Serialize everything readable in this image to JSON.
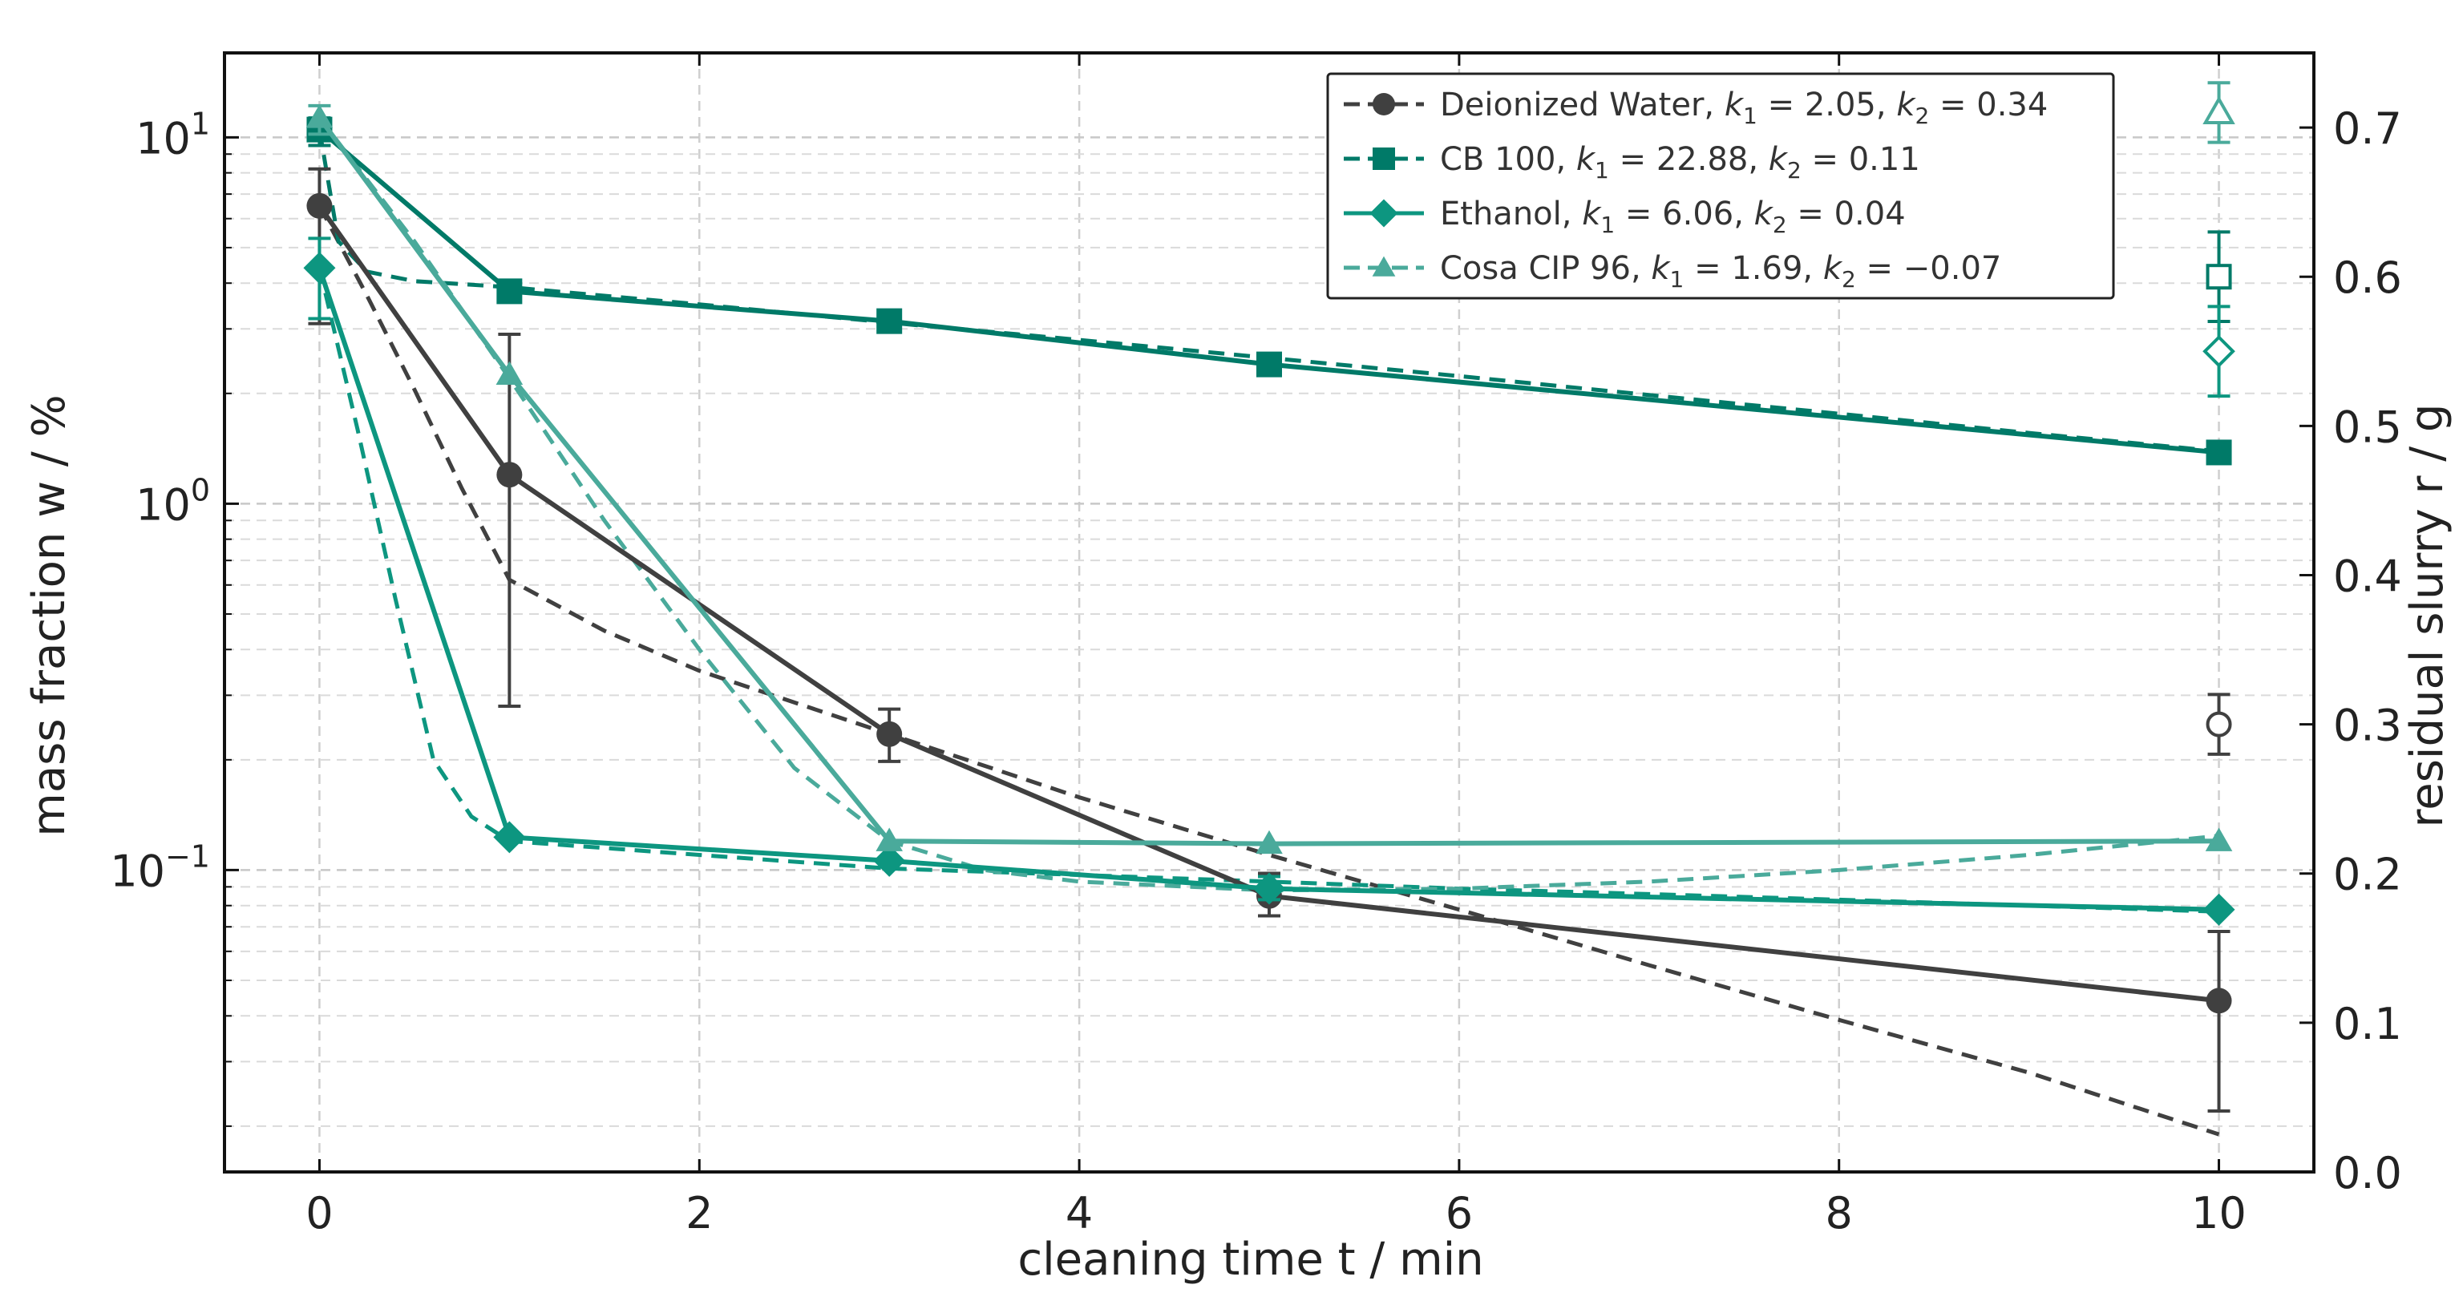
{
  "chart_data": {
    "type": "line",
    "title": "",
    "xlabel": "cleaning time t / min",
    "ylabel": "mass fraction w / %",
    "y2label": "residual slurry r / g",
    "xlim": [
      -0.5,
      10.5
    ],
    "ylim_log": [
      0.015,
      17
    ],
    "y2lim": [
      0.0,
      0.75
    ],
    "y_scale": "log",
    "grid": true,
    "legend_position": "upper-right",
    "x_ticks": [
      0,
      2,
      4,
      6,
      8,
      10
    ],
    "y_ticks": [
      {
        "value": 0.1,
        "base": "10",
        "exp": "−1"
      },
      {
        "value": 1,
        "base": "10",
        "exp": "0"
      },
      {
        "value": 10,
        "base": "10",
        "exp": "1"
      }
    ],
    "y2_ticks": [
      "0.0",
      "0.1",
      "0.2",
      "0.3",
      "0.4",
      "0.5",
      "0.6",
      "0.7"
    ],
    "series": [
      {
        "name": "Deionized Water",
        "k1": "2.05",
        "k2": "0.34",
        "color": "#404040",
        "marker": "circle",
        "x": [
          0,
          1,
          3,
          5,
          10
        ],
        "y": [
          6.5,
          1.2,
          0.235,
          0.085,
          0.044
        ],
        "yerr_low": [
          3.1,
          0.28,
          0.198,
          0.075,
          0.022
        ],
        "yerr_high": [
          8.2,
          2.9,
          0.275,
          0.098,
          0.068
        ],
        "fit_x": [
          0,
          0.25,
          0.5,
          0.75,
          1,
          1.5,
          2,
          3,
          4,
          5,
          6,
          7,
          8,
          9,
          10
        ],
        "fit_y": [
          6.5,
          3.7,
          2.05,
          1.1,
          0.62,
          0.45,
          0.35,
          0.235,
          0.158,
          0.11,
          0.078,
          0.055,
          0.039,
          0.028,
          0.019
        ],
        "residual_slurry": 0.3,
        "residual_err": [
          0.28,
          0.32
        ]
      },
      {
        "name": "CB 100",
        "k1": "22.88",
        "k2": "0.11",
        "color": "#007a68",
        "marker": "square",
        "x": [
          0,
          1,
          3,
          5,
          10
        ],
        "y": [
          10.5,
          3.8,
          3.15,
          2.4,
          1.38
        ],
        "yerr_low": [
          9.5,
          null,
          null,
          null,
          null
        ],
        "yerr_high": [
          11.3,
          null,
          null,
          null,
          null
        ],
        "fit_x": [
          0,
          0.1,
          0.25,
          0.5,
          1,
          2,
          3,
          4,
          5,
          6,
          7,
          8,
          9,
          10
        ],
        "fit_y": [
          10.5,
          5.2,
          4.3,
          4.05,
          3.9,
          3.5,
          3.12,
          2.8,
          2.5,
          2.23,
          1.98,
          1.76,
          1.56,
          1.39
        ],
        "residual_slurry": 0.6,
        "residual_err": [
          0.57,
          0.63
        ]
      },
      {
        "name": "Ethanol",
        "k1": "6.06",
        "k2": "0.04",
        "color": "#0d9680",
        "marker": "diamond",
        "x": [
          0,
          1,
          3,
          5,
          10
        ],
        "y": [
          4.4,
          0.123,
          0.106,
          0.089,
          0.078
        ],
        "yerr_low": [
          3.2,
          null,
          null,
          0.083,
          null
        ],
        "yerr_high": [
          5.3,
          null,
          null,
          0.096,
          null
        ],
        "fit_x": [
          0,
          0.2,
          0.4,
          0.6,
          0.8,
          1,
          2,
          3,
          4,
          5,
          6,
          7,
          8,
          9,
          10
        ],
        "fit_y": [
          4.4,
          1.6,
          0.55,
          0.2,
          0.14,
          0.12,
          0.11,
          0.101,
          0.097,
          0.093,
          0.089,
          0.086,
          0.083,
          0.08,
          0.077
        ],
        "residual_slurry": 0.55,
        "residual_err": [
          0.52,
          0.58
        ]
      },
      {
        "name": "Cosa CIP 96",
        "k1": "1.69",
        "k2": "−0.07",
        "color": "#4aaa9b",
        "marker": "triangle",
        "x": [
          0,
          1,
          3,
          5,
          10
        ],
        "y": [
          11.3,
          2.25,
          0.12,
          0.118,
          0.12
        ],
        "yerr_low": [
          10.2,
          null,
          null,
          null,
          null
        ],
        "yerr_high": [
          12.2,
          null,
          null,
          null,
          null
        ],
        "fit_x": [
          0,
          0.5,
          1,
          1.5,
          2,
          2.5,
          3,
          3.5,
          4,
          5,
          6,
          7,
          8,
          9,
          10
        ],
        "fit_y": [
          11.3,
          5.2,
          2.2,
          0.9,
          0.4,
          0.19,
          0.12,
          0.1,
          0.093,
          0.088,
          0.089,
          0.093,
          0.1,
          0.11,
          0.124
        ],
        "residual_slurry": 0.71,
        "residual_err": [
          0.69,
          0.73
        ]
      }
    ]
  }
}
